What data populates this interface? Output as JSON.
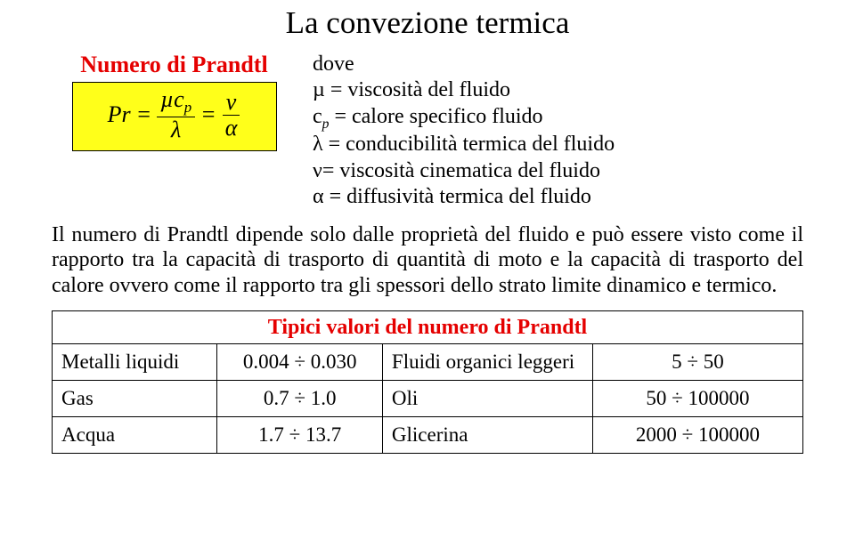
{
  "title": "La convezione termica",
  "prandtl": {
    "label": "Numero di Prandtl",
    "lhs": "Pr",
    "num1a": "µc",
    "num1sub": "p",
    "den1": "λ",
    "num2": "ν",
    "den2": "α"
  },
  "defs": {
    "dove": "dove",
    "l1_sym": "µ",
    "l1_txt": " = viscosità del fluido",
    "l2_sym": "c",
    "l2_sub": "p",
    "l2_txt": " = calore specifico fluido",
    "l3_sym": "λ",
    "l3_txt": " = conducibilità termica del fluido",
    "l4_sym": "ν",
    "l4_txt": "= viscosità cinematica del fluido",
    "l5_sym": "α",
    "l5_txt": " = diffusività termica del fluido"
  },
  "body": "Il numero di Prandtl dipende solo dalle proprietà del fluido e può essere visto come il rapporto tra la capacità di trasporto di quantità di moto e la capacità di trasporto del calore ovvero come il rapporto tra gli spessori dello strato limite dinamico e termico.",
  "table": {
    "caption": "Tipici valori del numero di Prandtl",
    "rows": [
      {
        "c1": "Metalli liquidi",
        "c2": "0.004 ÷ 0.030",
        "c3": "Fluidi organici leggeri",
        "c4": "5 ÷ 50"
      },
      {
        "c1": "Gas",
        "c2": "0.7 ÷ 1.0",
        "c3": "Oli",
        "c4": "50 ÷ 100000"
      },
      {
        "c1": "Acqua",
        "c2": "1.7 ÷ 13.7",
        "c3": "Glicerina",
        "c4": "2000 ÷ 100000"
      }
    ]
  }
}
